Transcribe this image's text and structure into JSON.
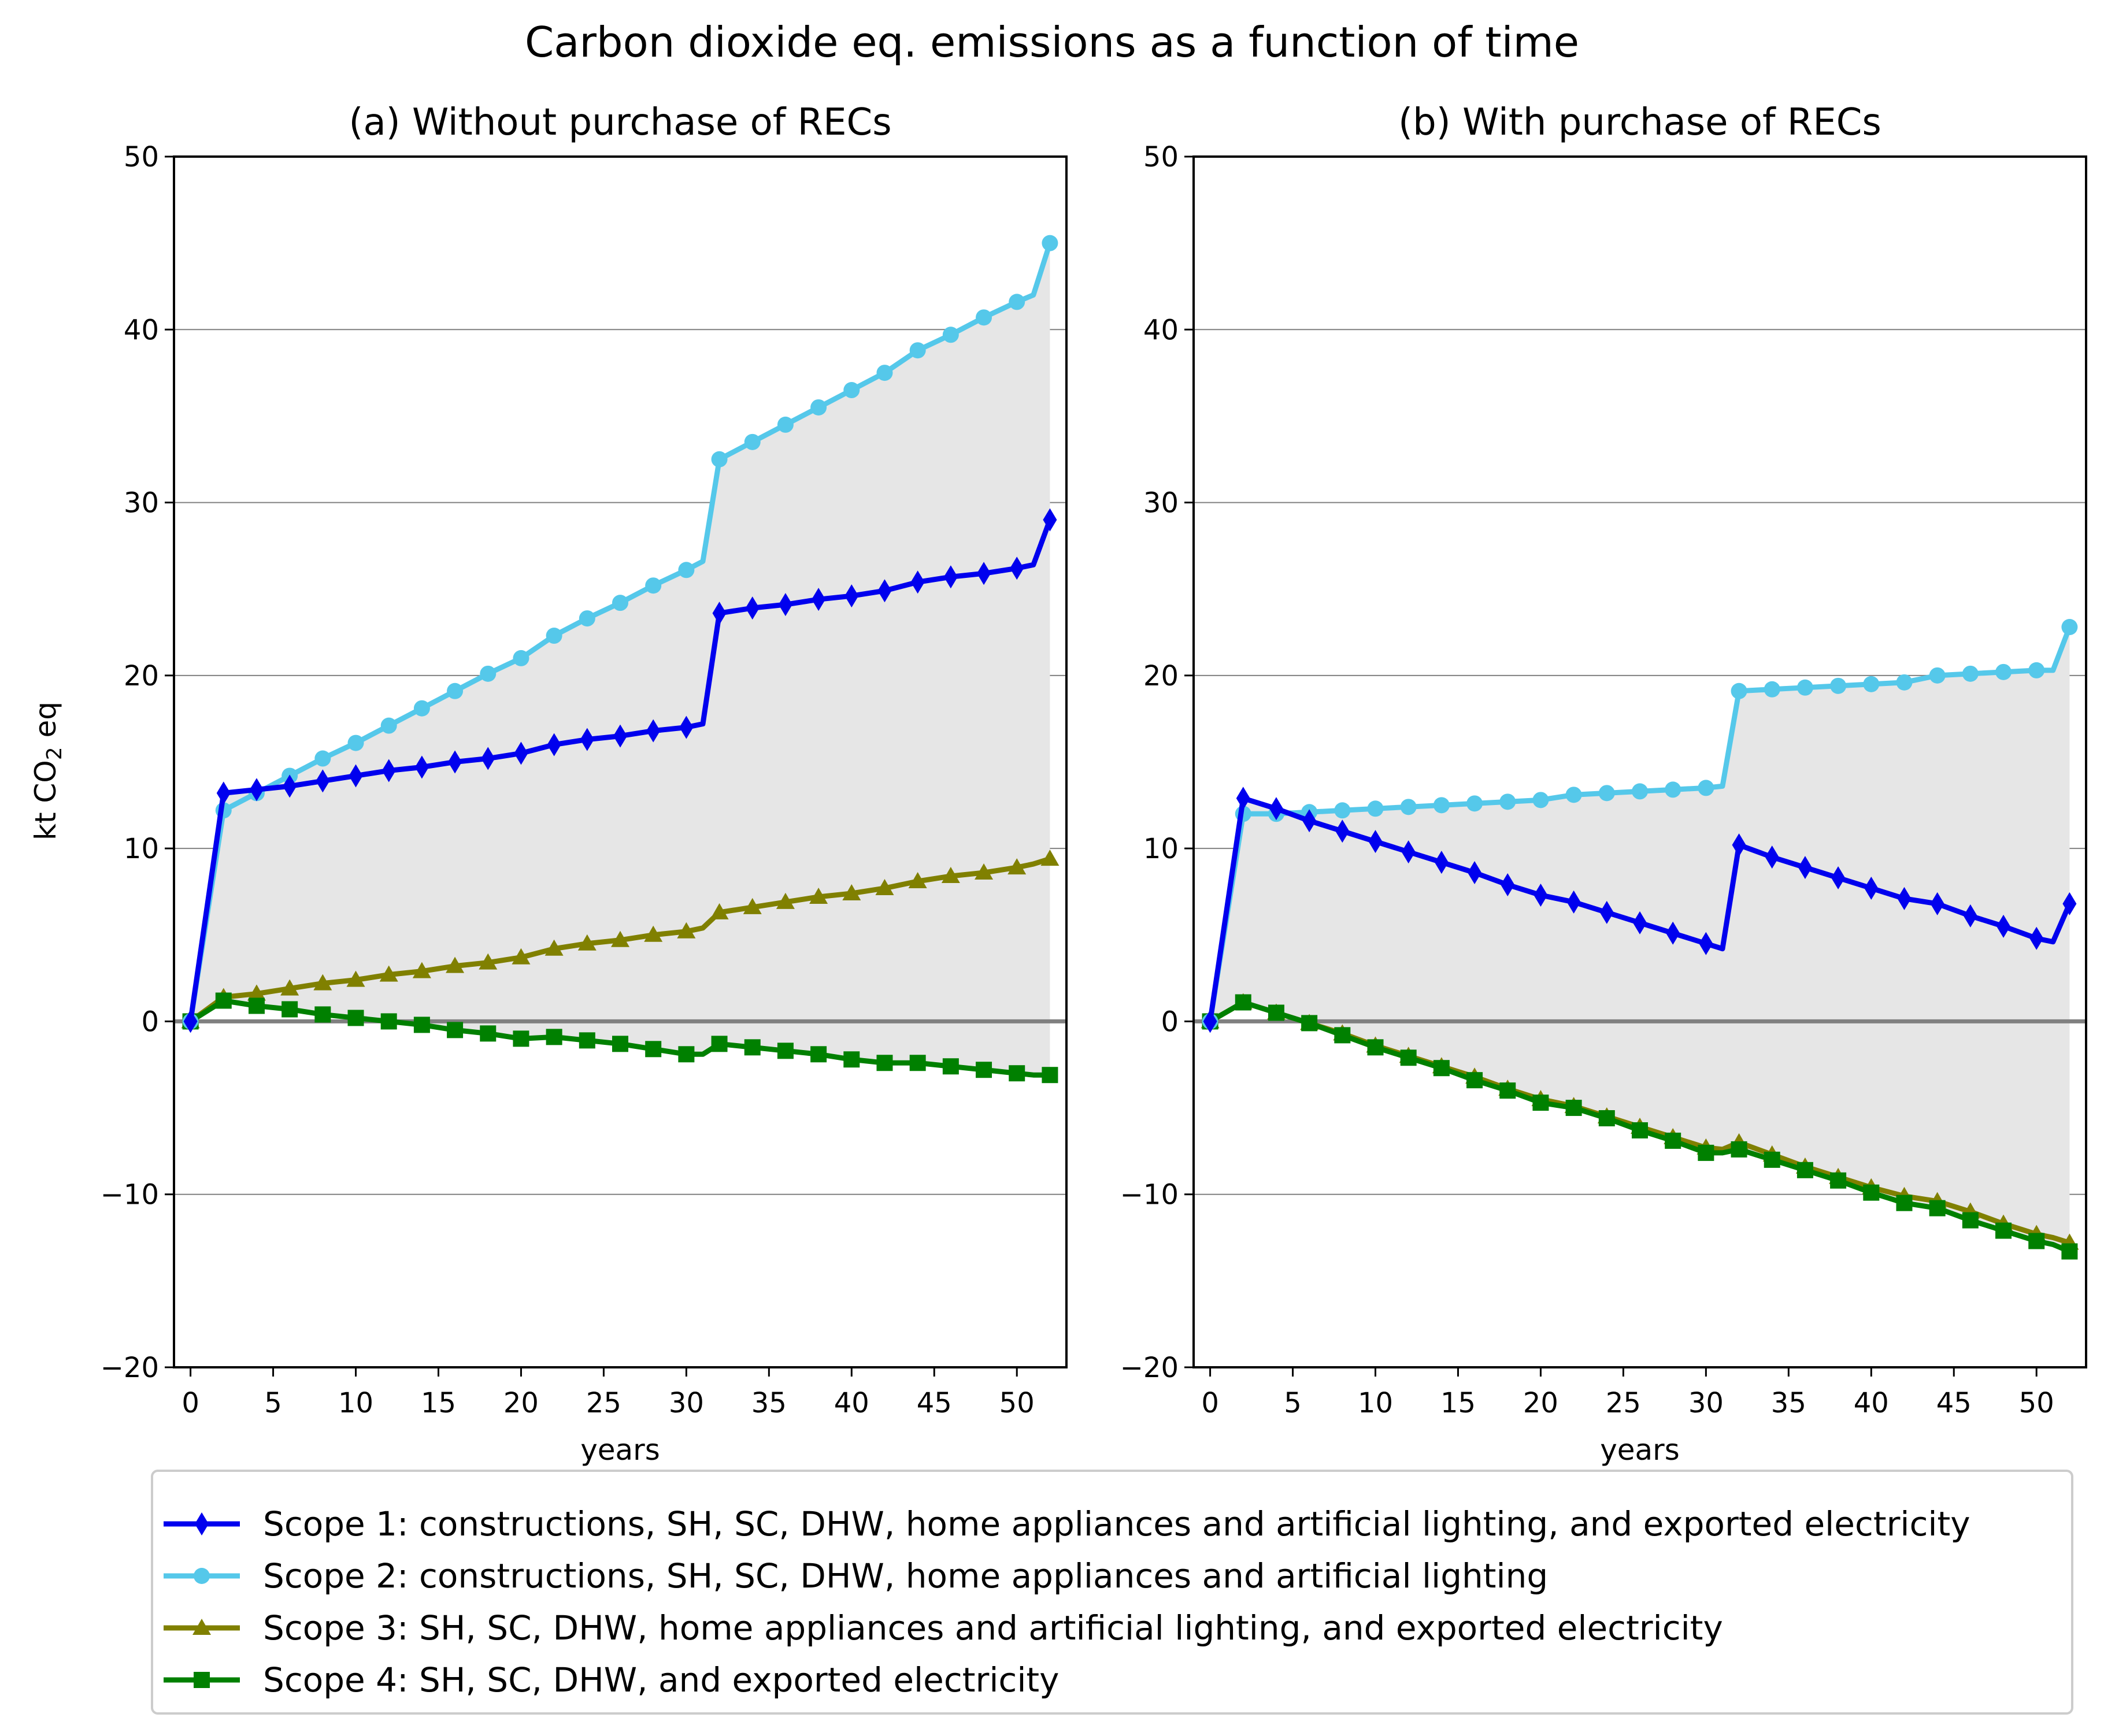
{
  "chart_data": {
    "type": "line",
    "suptitle": "Carbon dioxide eq. emissions as a function of time",
    "ylabel": "kt CO2 eq",
    "ylabel_parts": {
      "pre": "kt CO",
      "sub": "2",
      "post": " eq"
    },
    "x": [
      0,
      2,
      4,
      6,
      8,
      10,
      12,
      14,
      16,
      18,
      20,
      22,
      24,
      26,
      28,
      30,
      31,
      32,
      34,
      36,
      38,
      40,
      42,
      44,
      46,
      48,
      50,
      51,
      52
    ],
    "xticks": [
      0,
      5,
      10,
      15,
      20,
      25,
      30,
      35,
      40,
      45,
      50
    ],
    "xlim": [
      -1,
      53
    ],
    "ylim": [
      -20,
      50
    ],
    "yticks": [
      -20,
      -10,
      0,
      10,
      20,
      30,
      40,
      50
    ],
    "ytick_labels": [
      "−20",
      "−10",
      "0",
      "10",
      "20",
      "30",
      "40",
      "50"
    ],
    "legend_position": "bottom-center",
    "legend": [
      "Scope 1: constructions, SH, SC, DHW, home appliances and artificial lighting, and exported electricity",
      "Scope 2: constructions, SH, SC, DHW, home appliances and artificial lighting",
      "Scope 3: SH, SC, DHW, home appliances and artificial lighting, and exported electricity",
      "Scope 4: SH, SC, DHW, and exported electricity"
    ],
    "series_styles": [
      {
        "name": "Scope 1",
        "color": "#0000ee",
        "marker": "diamond"
      },
      {
        "name": "Scope 2",
        "color": "#55c8ea",
        "marker": "circle"
      },
      {
        "name": "Scope 3",
        "color": "#808000",
        "marker": "triangle"
      },
      {
        "name": "Scope 4",
        "color": "#008000",
        "marker": "square"
      }
    ],
    "fill_color": "#e6e6e6",
    "panels": [
      {
        "title": "(a) Without purchase of RECs",
        "xlabel": "years",
        "series": [
          {
            "name": "Scope 1",
            "values": [
              0,
              13.2,
              13.4,
              13.6,
              13.9,
              14.2,
              14.5,
              14.7,
              15.0,
              15.2,
              15.5,
              16.0,
              16.3,
              16.5,
              16.8,
              17.0,
              17.2,
              23.6,
              23.9,
              24.1,
              24.4,
              24.6,
              24.9,
              25.4,
              25.7,
              25.9,
              26.2,
              26.4,
              29.0
            ]
          },
          {
            "name": "Scope 2",
            "values": [
              0,
              12.2,
              13.2,
              14.2,
              15.2,
              16.1,
              17.1,
              18.1,
              19.1,
              20.1,
              21.0,
              22.3,
              23.3,
              24.2,
              25.2,
              26.1,
              26.6,
              32.5,
              33.5,
              34.5,
              35.5,
              36.5,
              37.5,
              38.8,
              39.7,
              40.7,
              41.6,
              42.0,
              45.0
            ]
          },
          {
            "name": "Scope 3",
            "values": [
              0,
              1.4,
              1.6,
              1.9,
              2.2,
              2.4,
              2.7,
              2.9,
              3.2,
              3.4,
              3.7,
              4.2,
              4.5,
              4.7,
              5.0,
              5.2,
              5.4,
              6.3,
              6.6,
              6.9,
              7.2,
              7.4,
              7.7,
              8.1,
              8.4,
              8.6,
              8.9,
              9.1,
              9.4
            ]
          },
          {
            "name": "Scope 4",
            "values": [
              0,
              1.2,
              0.9,
              0.7,
              0.4,
              0.2,
              0.0,
              -0.2,
              -0.5,
              -0.7,
              -1.0,
              -0.9,
              -1.1,
              -1.3,
              -1.6,
              -1.9,
              -1.9,
              -1.3,
              -1.5,
              -1.7,
              -1.9,
              -2.2,
              -2.4,
              -2.4,
              -2.6,
              -2.8,
              -3.0,
              -3.1,
              -3.1
            ]
          }
        ]
      },
      {
        "title": "(b) With purchase of RECs",
        "xlabel": "years",
        "series": [
          {
            "name": "Scope 1",
            "values": [
              0,
              12.9,
              12.3,
              11.6,
              11.0,
              10.4,
              9.8,
              9.2,
              8.6,
              7.9,
              7.3,
              6.9,
              6.3,
              5.7,
              5.1,
              4.5,
              4.2,
              10.2,
              9.5,
              8.9,
              8.3,
              7.7,
              7.1,
              6.8,
              6.1,
              5.5,
              4.8,
              4.6,
              6.8
            ]
          },
          {
            "name": "Scope 2",
            "values": [
              0,
              12.0,
              12.0,
              12.1,
              12.2,
              12.3,
              12.4,
              12.5,
              12.6,
              12.7,
              12.8,
              13.1,
              13.2,
              13.3,
              13.4,
              13.5,
              13.6,
              19.1,
              19.2,
              19.3,
              19.4,
              19.5,
              19.6,
              20.0,
              20.1,
              20.2,
              20.3,
              20.3,
              22.8
            ]
          },
          {
            "name": "Scope 3",
            "values": [
              0,
              1.1,
              0.5,
              -0.1,
              -0.7,
              -1.4,
              -2.0,
              -2.6,
              -3.2,
              -3.9,
              -4.5,
              -4.9,
              -5.5,
              -6.1,
              -6.7,
              -7.3,
              -7.4,
              -7.0,
              -7.7,
              -8.4,
              -9.0,
              -9.6,
              -10.1,
              -10.4,
              -11.0,
              -11.7,
              -12.3,
              -12.5,
              -12.8
            ]
          },
          {
            "name": "Scope 4",
            "values": [
              0,
              1.1,
              0.5,
              -0.1,
              -0.8,
              -1.5,
              -2.1,
              -2.7,
              -3.4,
              -4.0,
              -4.7,
              -5.0,
              -5.6,
              -6.3,
              -6.9,
              -7.6,
              -7.6,
              -7.4,
              -8.0,
              -8.6,
              -9.2,
              -9.9,
              -10.5,
              -10.8,
              -11.5,
              -12.1,
              -12.7,
              -12.9,
              -13.3
            ]
          }
        ]
      }
    ]
  }
}
